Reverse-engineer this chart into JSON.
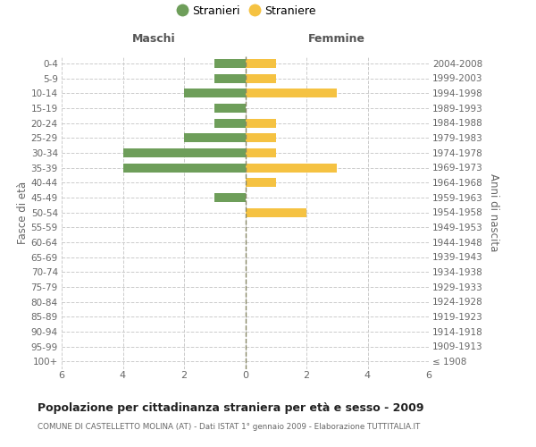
{
  "age_groups": [
    "100+",
    "95-99",
    "90-94",
    "85-89",
    "80-84",
    "75-79",
    "70-74",
    "65-69",
    "60-64",
    "55-59",
    "50-54",
    "45-49",
    "40-44",
    "35-39",
    "30-34",
    "25-29",
    "20-24",
    "15-19",
    "10-14",
    "5-9",
    "0-4"
  ],
  "birth_years": [
    "≤ 1908",
    "1909-1913",
    "1914-1918",
    "1919-1923",
    "1924-1928",
    "1929-1933",
    "1934-1938",
    "1939-1943",
    "1944-1948",
    "1949-1953",
    "1954-1958",
    "1959-1963",
    "1964-1968",
    "1969-1973",
    "1974-1978",
    "1979-1983",
    "1984-1988",
    "1989-1993",
    "1994-1998",
    "1999-2003",
    "2004-2008"
  ],
  "males": [
    0,
    0,
    0,
    0,
    0,
    0,
    0,
    0,
    0,
    0,
    0,
    1,
    0,
    4,
    4,
    2,
    1,
    1,
    2,
    1,
    1
  ],
  "females": [
    0,
    0,
    0,
    0,
    0,
    0,
    0,
    0,
    0,
    0,
    2,
    0,
    1,
    3,
    1,
    1,
    1,
    0,
    3,
    1,
    1
  ],
  "male_color": "#6e9e5a",
  "female_color": "#f5c242",
  "title": "Popolazione per cittadinanza straniera per età e sesso - 2009",
  "subtitle": "COMUNE DI CASTELLETTO MOLINA (AT) - Dati ISTAT 1° gennaio 2009 - Elaborazione TUTTITALIA.IT",
  "ylabel_left": "Fasce di età",
  "ylabel_right": "Anni di nascita",
  "xlabel_left": "Maschi",
  "xlabel_right": "Femmine",
  "legend_males": "Stranieri",
  "legend_females": "Straniere",
  "xlim": 6,
  "background_color": "#ffffff",
  "grid_color": "#cccccc"
}
